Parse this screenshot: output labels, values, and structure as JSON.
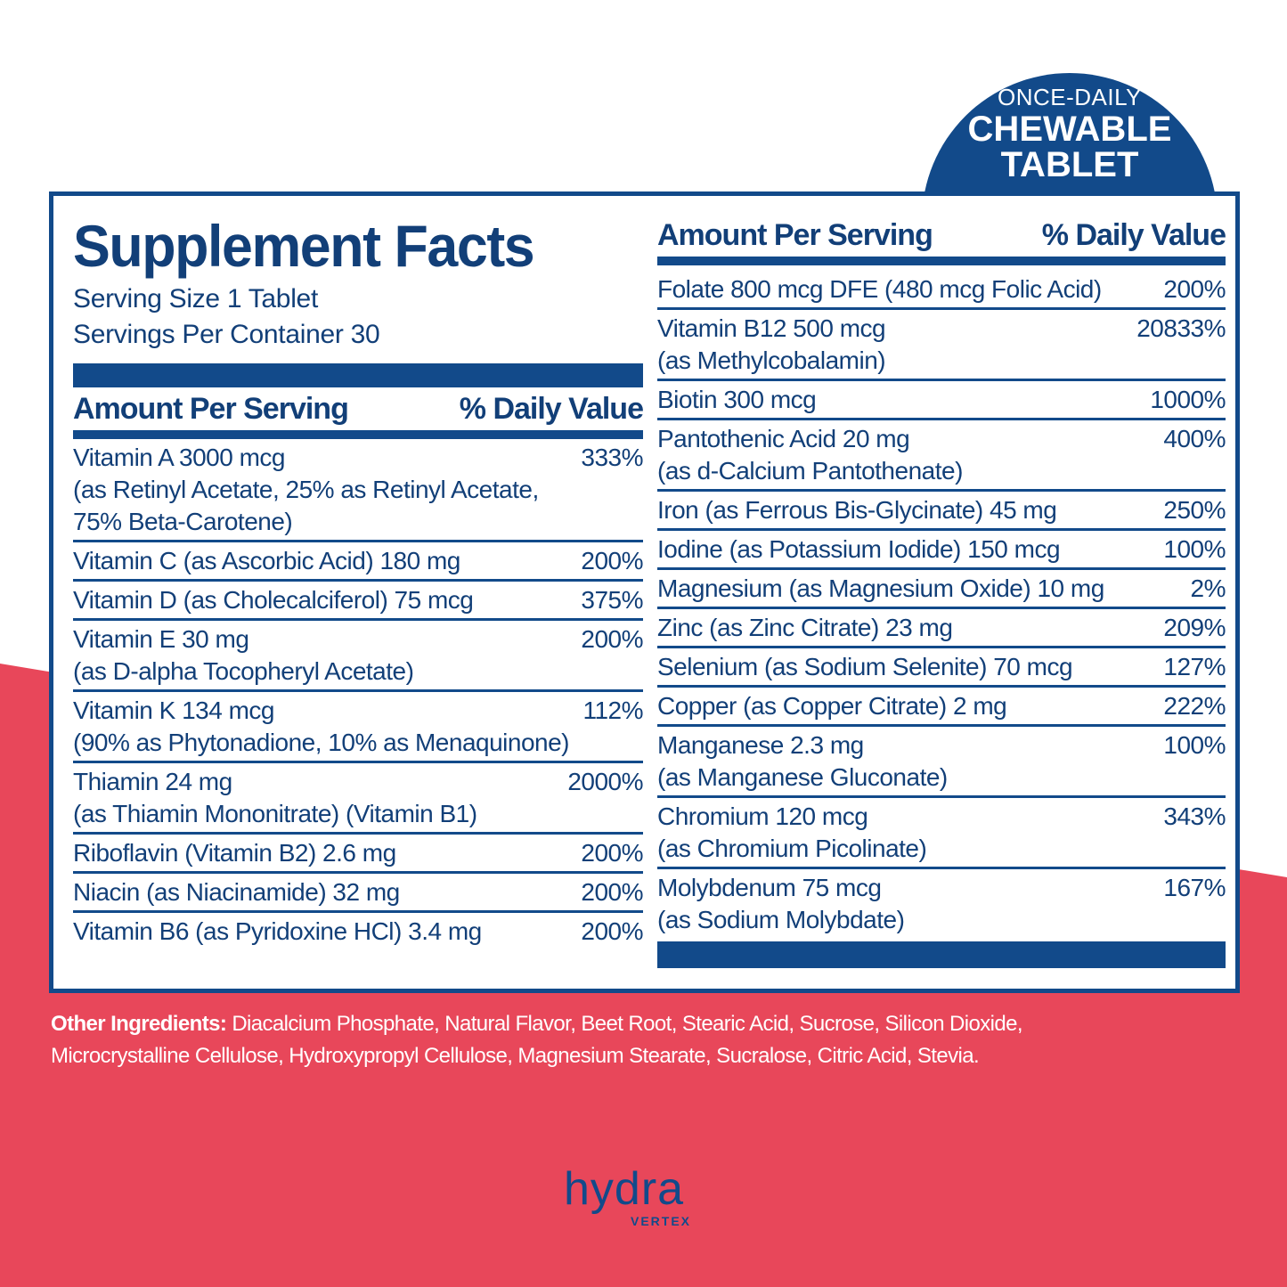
{
  "badge": {
    "line1": "ONCE-DAILY",
    "line2": "CHEWABLE",
    "line3": "TABLET"
  },
  "title": "Supplement Facts",
  "serving_size": "Serving Size 1 Tablet",
  "servings_per_container": "Servings Per Container 30",
  "left_header": {
    "amount": "Amount Per Serving",
    "dv": "% Daily Value"
  },
  "right_header": {
    "amount": "Amount Per Serving",
    "dv": "% Daily Value"
  },
  "left_rows": [
    {
      "lines": [
        "Vitamin A 3000 mcg",
        "(as Retinyl Acetate, 25% as Retinyl Acetate,",
        "75% Beta-Carotene)"
      ],
      "dv": "333%"
    },
    {
      "lines": [
        "Vitamin C (as Ascorbic Acid) 180 mg"
      ],
      "dv": "200%"
    },
    {
      "lines": [
        "Vitamin D (as Cholecalciferol) 75 mcg"
      ],
      "dv": "375%"
    },
    {
      "lines": [
        "Vitamin E 30 mg",
        "(as D-alpha Tocopheryl Acetate)"
      ],
      "dv": "200%"
    },
    {
      "lines": [
        "Vitamin K 134 mcg",
        "(90% as Phytonadione, 10% as Menaquinone)"
      ],
      "dv": "112%"
    },
    {
      "lines": [
        "Thiamin 24 mg",
        "(as Thiamin Mononitrate) (Vitamin B1)"
      ],
      "dv": "2000%"
    },
    {
      "lines": [
        "Riboflavin (Vitamin B2) 2.6 mg"
      ],
      "dv": "200%"
    },
    {
      "lines": [
        "Niacin (as Niacinamide) 32 mg"
      ],
      "dv": "200%"
    },
    {
      "lines": [
        "Vitamin B6 (as Pyridoxine HCl) 3.4 mg"
      ],
      "dv": "200%"
    }
  ],
  "right_rows": [
    {
      "lines": [
        "Folate 800 mcg DFE (480 mcg Folic Acid)"
      ],
      "dv": "200%"
    },
    {
      "lines": [
        "Vitamin B12 500 mcg",
        "(as Methylcobalamin)"
      ],
      "dv": "20833%"
    },
    {
      "lines": [
        "Biotin 300 mcg"
      ],
      "dv": "1000%"
    },
    {
      "lines": [
        "Pantothenic Acid 20 mg",
        "(as d-Calcium Pantothenate)"
      ],
      "dv": "400%"
    },
    {
      "lines": [
        "Iron (as Ferrous Bis-Glycinate) 45 mg"
      ],
      "dv": "250%"
    },
    {
      "lines": [
        "Iodine (as Potassium Iodide) 150 mcg"
      ],
      "dv": "100%"
    },
    {
      "lines": [
        "Magnesium (as Magnesium Oxide) 10 mg"
      ],
      "dv": "2%"
    },
    {
      "lines": [
        "Zinc (as Zinc Citrate) 23 mg"
      ],
      "dv": "209%"
    },
    {
      "lines": [
        "Selenium (as Sodium Selenite) 70 mcg"
      ],
      "dv": "127%"
    },
    {
      "lines": [
        "Copper (as Copper Citrate) 2 mg"
      ],
      "dv": "222%"
    },
    {
      "lines": [
        "Manganese 2.3 mg",
        "(as Manganese Gluconate)"
      ],
      "dv": "100%"
    },
    {
      "lines": [
        "Chromium 120 mcg",
        "(as Chromium Picolinate)"
      ],
      "dv": "343%"
    },
    {
      "lines": [
        "Molybdenum 75 mcg",
        "(as Sodium Molybdate)"
      ],
      "dv": "167%"
    }
  ],
  "other_ingredients": {
    "label": "Other Ingredients:",
    "text": "Diacalcium Phosphate, Natural Flavor, Beet Root, Stearic Acid, Sucrose, Silicon Dioxide, Microcrystalline Cellulose, Hydroxypropyl Cellulose, Magnesium Stearate, Sucralose, Citric Acid, Stevia."
  },
  "brand": {
    "name": "hydra",
    "sub": "VERTEX"
  }
}
